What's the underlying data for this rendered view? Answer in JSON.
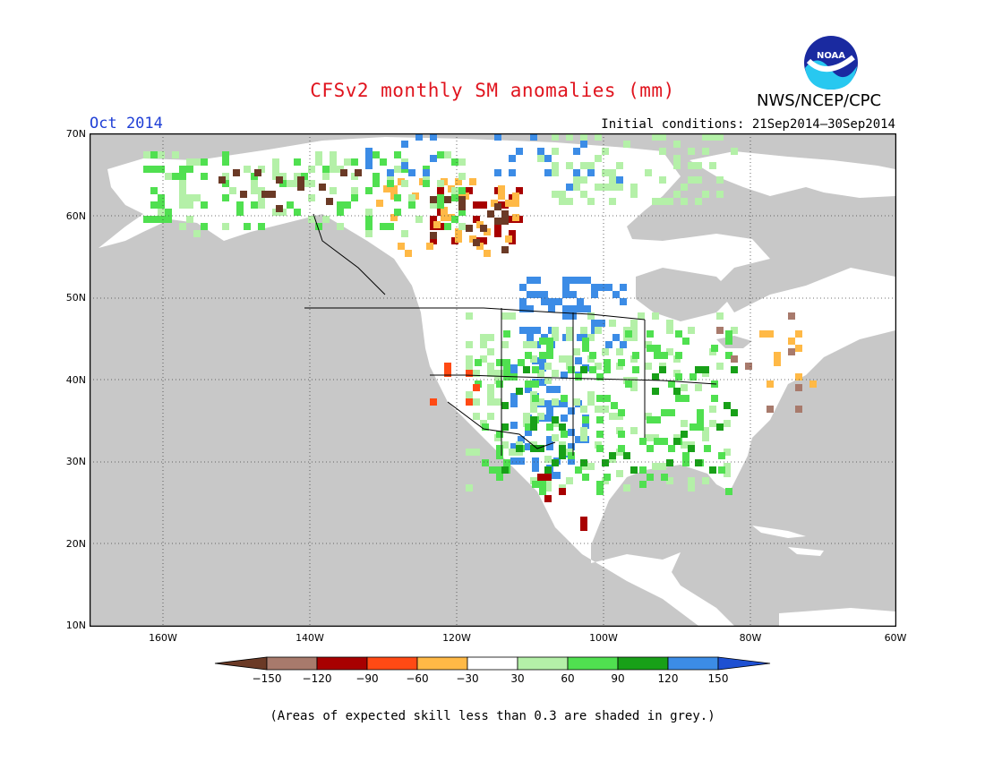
{
  "title": "CFSv2 monthly SM anomalies (mm)",
  "month_label": "Oct 2014",
  "initial_conditions": "Initial conditions: 21Sep2014–30Sep2014",
  "agency": "NWS/NCEP/CPC",
  "logo_text": "NOAA",
  "footnote": "(Areas of expected skill less than 0.3 are shaded in grey.)",
  "map": {
    "lat_labels": [
      "70N",
      "60N",
      "50N",
      "40N",
      "30N",
      "20N",
      "10N"
    ],
    "lon_labels": [
      "160W",
      "140W",
      "120W",
      "100W",
      "80W",
      "60W"
    ],
    "ocean_color": "#c8c8c8",
    "land_color": "#ffffff",
    "grid": "dotted"
  },
  "colorbar": {
    "labels": [
      "−150",
      "−120",
      "−90",
      "−60",
      "−30",
      "30",
      "60",
      "90",
      "120",
      "150"
    ],
    "colors": [
      "#6b3a26",
      "#a87a6c",
      "#a80000",
      "#ff4a14",
      "#ffb946",
      "#ffffff",
      "#b4f0a8",
      "#50e050",
      "#18a018",
      "#3c8ce6",
      "#1e50d2"
    ]
  },
  "legend_colors": {
    "dark_brown": "#6b3a26",
    "light_brown": "#a87a6c",
    "dark_red": "#a80000",
    "orange_red": "#ff4a14",
    "yellow_orange": "#ffb946",
    "light_green": "#b4f0a8",
    "green": "#50e050",
    "dark_green": "#18a018",
    "blue": "#3c8ce6"
  }
}
